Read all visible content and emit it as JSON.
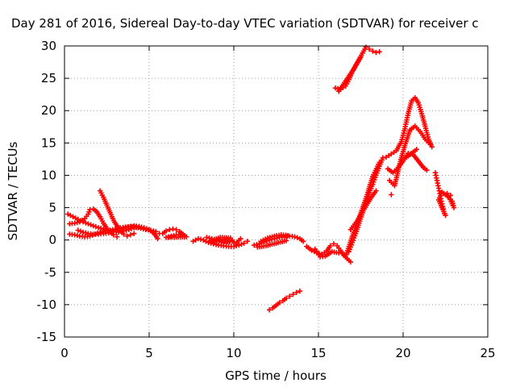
{
  "chart_data": {
    "type": "scatter",
    "title": "Day 281 of 2016, Sidereal Day-to-day VTEC variation (SDTVAR) for receiver c",
    "xlabel": "GPS time / hours",
    "ylabel": "SDTVAR / TECUs",
    "xlim": [
      0,
      25
    ],
    "ylim": [
      -15,
      30
    ],
    "x_ticks": [
      0,
      5,
      10,
      15,
      20,
      25
    ],
    "y_ticks": [
      -15,
      -10,
      -5,
      0,
      5,
      10,
      15,
      20,
      25,
      30
    ],
    "grid": true,
    "colors": {
      "series": "#ff0000",
      "grid": "#a0a0a0",
      "axis": "#000000"
    },
    "series": [
      {
        "points": [
          [
            0.2,
            4
          ],
          [
            0.5,
            3.6
          ],
          [
            0.8,
            3.2
          ],
          [
            1.1,
            2.8
          ],
          [
            1.4,
            2.5
          ],
          [
            1.7,
            2.2
          ],
          [
            2.0,
            1.9
          ],
          [
            2.3,
            1.7
          ],
          [
            2.6,
            1.5
          ],
          [
            2.9,
            1.3
          ],
          [
            3.2,
            1.2
          ],
          [
            3.5,
            1.4
          ],
          [
            3.8,
            1.6
          ],
          [
            4.1,
            1.9
          ],
          [
            4.4,
            2.0
          ]
        ]
      },
      {
        "points": [
          [
            0.3,
            2.5
          ],
          [
            0.6,
            2.6
          ],
          [
            0.9,
            2.8
          ],
          [
            1.2,
            3.3
          ],
          [
            1.4,
            4.0
          ],
          [
            1.5,
            4.7
          ],
          [
            1.7,
            4.8
          ],
          [
            1.9,
            4.4
          ],
          [
            2.1,
            3.6
          ],
          [
            2.3,
            2.6
          ],
          [
            2.5,
            1.8
          ],
          [
            2.7,
            1.2
          ],
          [
            2.9,
            0.8
          ],
          [
            3.1,
            0.5
          ]
        ]
      },
      {
        "points": [
          [
            0.3,
            0.9
          ],
          [
            0.6,
            0.8
          ],
          [
            0.9,
            0.6
          ],
          [
            1.2,
            0.5
          ],
          [
            1.5,
            0.6
          ],
          [
            1.8,
            0.9
          ],
          [
            2.1,
            1.2
          ],
          [
            2.4,
            1.4
          ],
          [
            2.7,
            1.5
          ],
          [
            3.0,
            1.7
          ],
          [
            3.3,
            1.9
          ],
          [
            3.6,
            2.0
          ],
          [
            3.9,
            2.1
          ],
          [
            4.2,
            2.0
          ],
          [
            4.5,
            1.8
          ],
          [
            4.8,
            1.6
          ],
          [
            5.1,
            1.5
          ],
          [
            5.4,
            1.3
          ],
          [
            5.6,
            1.0
          ]
        ]
      },
      {
        "points": [
          [
            2.1,
            7.6
          ],
          [
            2.3,
            6.6
          ],
          [
            2.5,
            5.4
          ],
          [
            2.7,
            4.2
          ],
          [
            2.9,
            3.0
          ],
          [
            3.1,
            2.2
          ],
          [
            3.3,
            1.4
          ],
          [
            3.5,
            0.9
          ],
          [
            3.7,
            0.6
          ],
          [
            3.9,
            0.8
          ],
          [
            4.1,
            1.0
          ]
        ]
      },
      {
        "points": [
          [
            0.8,
            1.5
          ],
          [
            1.1,
            1.2
          ],
          [
            1.4,
            1.0
          ],
          [
            1.7,
            0.9
          ],
          [
            2.0,
            0.9
          ],
          [
            2.3,
            1.0
          ],
          [
            2.6,
            1.1
          ],
          [
            2.9,
            1.3
          ],
          [
            3.2,
            1.5
          ],
          [
            3.5,
            1.8
          ],
          [
            3.8,
            2.0
          ],
          [
            4.1,
            2.2
          ],
          [
            4.4,
            2.1
          ],
          [
            4.7,
            1.9
          ],
          [
            5.0,
            1.6
          ],
          [
            5.3,
            1.0
          ],
          [
            5.5,
            0.2
          ]
        ]
      },
      {
        "points": [
          [
            5.8,
            1.0
          ],
          [
            6.0,
            1.4
          ],
          [
            6.2,
            1.6
          ],
          [
            6.4,
            1.7
          ],
          [
            6.6,
            1.6
          ],
          [
            6.8,
            1.3
          ],
          [
            7.0,
            0.9
          ],
          [
            7.2,
            0.5
          ],
          [
            6.0,
            0.4
          ],
          [
            6.3,
            0.6
          ],
          [
            6.6,
            0.8
          ],
          [
            6.9,
            0.9
          ]
        ]
      },
      {
        "points": [
          [
            7.6,
            -0.2
          ],
          [
            7.9,
            0.2
          ],
          [
            8.2,
            0.0
          ],
          [
            8.5,
            -0.4
          ],
          [
            8.8,
            -0.6
          ],
          [
            9.1,
            -0.8
          ],
          [
            9.4,
            -0.9
          ],
          [
            9.7,
            -1.0
          ],
          [
            10.0,
            -1.0
          ],
          [
            10.3,
            -0.8
          ],
          [
            10.6,
            -0.5
          ],
          [
            10.8,
            -0.2
          ],
          [
            8.4,
            0.4
          ],
          [
            8.7,
            0.2
          ],
          [
            9.0,
            0.0
          ],
          [
            9.3,
            -0.2
          ],
          [
            9.6,
            -0.3
          ],
          [
            9.9,
            -0.2
          ],
          [
            8.6,
            -0.2
          ],
          [
            9.2,
            0.4
          ],
          [
            9.8,
            0.3
          ],
          [
            10.1,
            -0.6
          ],
          [
            10.4,
            0.2
          ]
        ]
      },
      {
        "points": [
          [
            11.2,
            -0.8
          ],
          [
            11.5,
            -0.6
          ],
          [
            11.8,
            -0.3
          ],
          [
            12.1,
            0.0
          ],
          [
            12.4,
            0.2
          ],
          [
            12.7,
            0.4
          ],
          [
            13.0,
            0.5
          ],
          [
            13.3,
            0.6
          ],
          [
            13.6,
            0.5
          ],
          [
            13.9,
            0.2
          ],
          [
            14.1,
            -0.2
          ],
          [
            11.6,
            -0.2
          ],
          [
            12.0,
            0.3
          ],
          [
            12.4,
            0.6
          ],
          [
            12.8,
            0.8
          ],
          [
            13.2,
            0.7
          ],
          [
            11.4,
            -1.1
          ],
          [
            11.9,
            -0.9
          ],
          [
            12.5,
            -0.5
          ],
          [
            13.1,
            -0.1
          ]
        ]
      },
      {
        "points": [
          [
            14.3,
            -1.0
          ],
          [
            14.6,
            -1.6
          ],
          [
            14.9,
            -2.0
          ],
          [
            15.2,
            -2.2
          ],
          [
            15.5,
            -1.7
          ],
          [
            15.7,
            -0.9
          ],
          [
            15.9,
            -0.6
          ],
          [
            16.1,
            -0.9
          ],
          [
            16.3,
            -1.6
          ],
          [
            16.5,
            -2.4
          ],
          [
            16.7,
            -2.9
          ],
          [
            16.9,
            -3.4
          ],
          [
            14.8,
            -1.4
          ],
          [
            15.1,
            -2.6
          ],
          [
            15.4,
            -2.5
          ],
          [
            15.8,
            -1.8
          ],
          [
            16.2,
            -2.0
          ]
        ]
      },
      {
        "points": [
          [
            12.1,
            -10.8
          ],
          [
            12.3,
            -10.5
          ],
          [
            12.5,
            -10.1
          ],
          [
            12.7,
            -9.7
          ],
          [
            12.9,
            -9.4
          ],
          [
            13.1,
            -9.0
          ],
          [
            13.3,
            -8.7
          ],
          [
            13.5,
            -8.4
          ],
          [
            13.7,
            -8.1
          ],
          [
            13.9,
            -7.9
          ]
        ]
      },
      {
        "points": [
          [
            16.8,
            -1.8
          ],
          [
            17.0,
            -0.4
          ],
          [
            17.2,
            1.0
          ],
          [
            17.4,
            2.6
          ],
          [
            17.6,
            4.2
          ],
          [
            17.8,
            5.8
          ],
          [
            18.0,
            7.3
          ],
          [
            18.2,
            8.6
          ],
          [
            18.4,
            10.0
          ],
          [
            18.6,
            11.4
          ],
          [
            18.8,
            12.7
          ],
          [
            16.6,
            -2.6
          ],
          [
            17.0,
            0.6
          ],
          [
            17.4,
            3.4
          ],
          [
            17.8,
            6.4
          ],
          [
            18.2,
            9.8
          ],
          [
            18.6,
            12.0
          ],
          [
            16.9,
            1.6
          ],
          [
            17.3,
            3.0
          ],
          [
            17.7,
            4.8
          ],
          [
            18.1,
            6.5
          ],
          [
            18.4,
            7.6
          ]
        ]
      },
      {
        "points": [
          [
            16.0,
            23.5
          ],
          [
            16.3,
            23.3
          ],
          [
            16.6,
            23.8
          ],
          [
            16.8,
            24.8
          ],
          [
            17.0,
            26.0
          ],
          [
            17.2,
            27.0
          ],
          [
            17.4,
            27.9
          ],
          [
            17.6,
            28.9
          ],
          [
            17.8,
            29.8
          ],
          [
            18.0,
            29.5
          ],
          [
            18.2,
            29.2
          ],
          [
            18.4,
            29.0
          ],
          [
            18.6,
            29.1
          ],
          [
            16.2,
            23.0
          ],
          [
            17.1,
            26.5
          ],
          [
            17.5,
            28.3
          ]
        ]
      },
      {
        "points": [
          [
            19.0,
            12.8
          ],
          [
            19.3,
            13.3
          ],
          [
            19.6,
            13.8
          ],
          [
            19.9,
            15.2
          ],
          [
            20.1,
            17.2
          ],
          [
            20.3,
            19.6
          ],
          [
            20.5,
            21.5
          ],
          [
            20.7,
            22.0
          ],
          [
            20.9,
            21.2
          ],
          [
            21.1,
            19.5
          ],
          [
            21.3,
            17.6
          ],
          [
            21.5,
            15.6
          ],
          [
            21.7,
            14.4
          ],
          [
            19.1,
            11.0
          ],
          [
            19.4,
            10.4
          ],
          [
            19.7,
            11.2
          ],
          [
            20.0,
            12.2
          ],
          [
            20.3,
            13.4
          ],
          [
            20.6,
            13.2
          ],
          [
            20.9,
            12.2
          ],
          [
            21.2,
            11.2
          ],
          [
            21.4,
            10.8
          ],
          [
            19.2,
            9.2
          ],
          [
            19.5,
            8.4
          ],
          [
            19.8,
            11.8
          ],
          [
            20.1,
            14.6
          ],
          [
            20.4,
            17.0
          ],
          [
            20.7,
            17.6
          ],
          [
            21.0,
            16.8
          ],
          [
            21.3,
            15.6
          ],
          [
            21.6,
            14.8
          ],
          [
            19.3,
            7.0
          ],
          [
            20.2,
            12.8
          ],
          [
            20.8,
            14.0
          ]
        ]
      },
      {
        "points": [
          [
            21.9,
            10.4
          ],
          [
            22.0,
            9.2
          ],
          [
            22.1,
            8.0
          ],
          [
            22.2,
            6.8
          ],
          [
            22.3,
            5.6
          ],
          [
            22.4,
            4.4
          ],
          [
            22.5,
            3.8
          ],
          [
            22.1,
            6.2
          ],
          [
            22.3,
            7.4
          ],
          [
            22.5,
            7.0
          ],
          [
            22.7,
            6.6
          ],
          [
            22.9,
            6.0
          ],
          [
            23.0,
            5.0
          ],
          [
            22.6,
            7.2
          ],
          [
            22.8,
            6.9
          ]
        ]
      }
    ]
  }
}
